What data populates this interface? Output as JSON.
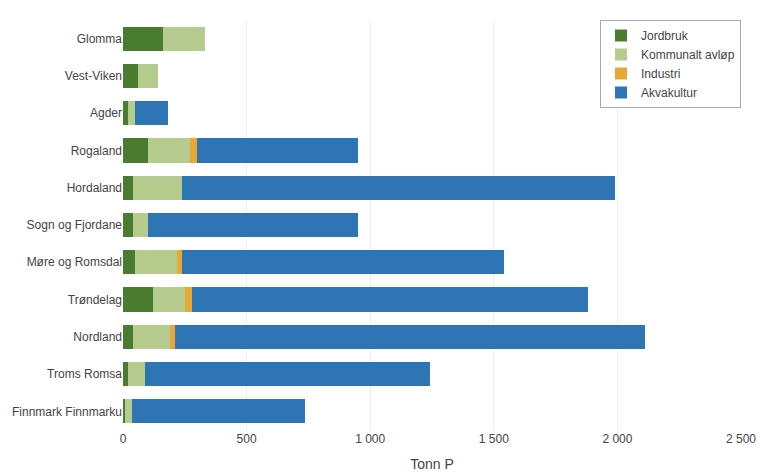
{
  "chart_data": {
    "type": "bar",
    "orientation": "horizontal",
    "stacked": true,
    "categories": [
      "Glomma",
      "Vest-Viken",
      "Agder",
      "Rogaland",
      "Hordaland",
      "Sogn og Fjordane",
      "Møre og Romsdal",
      "Trøndelag",
      "Nordland",
      "Troms Romsa",
      "Finnmark Finnmarku"
    ],
    "series": [
      {
        "name": "Jordbruk",
        "color": "#4a7c2f",
        "values": [
          160,
          60,
          20,
          100,
          40,
          40,
          50,
          120,
          40,
          20,
          10
        ]
      },
      {
        "name": "Kommunalt avløp",
        "color": "#b5cc8e",
        "values": [
          170,
          80,
          30,
          170,
          200,
          60,
          170,
          130,
          150,
          70,
          25
        ]
      },
      {
        "name": "Industri",
        "color": "#e8a838",
        "values": [
          0,
          0,
          0,
          30,
          0,
          0,
          20,
          30,
          20,
          0,
          0
        ]
      },
      {
        "name": "Akvakultur",
        "color": "#2e75b6",
        "values": [
          0,
          0,
          130,
          650,
          1750,
          850,
          1300,
          1600,
          1900,
          1150,
          700
        ]
      }
    ],
    "xlabel": "Tonn P",
    "xlim": [
      0,
      2500
    ],
    "xticks": [
      0,
      500,
      {
        "value": 1000,
        "label": "1 000"
      },
      {
        "value": 1500,
        "label": "1 500"
      },
      {
        "value": 2000,
        "label": "2 000"
      },
      {
        "value": 2500,
        "label": "2 500"
      }
    ],
    "grid": true,
    "legend": "upper right"
  }
}
